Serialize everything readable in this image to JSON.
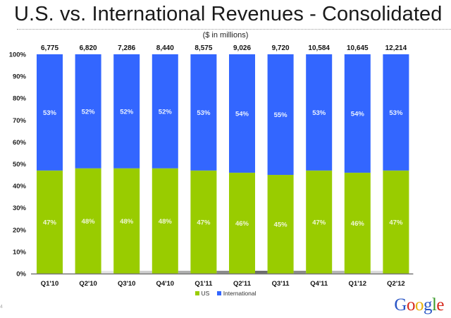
{
  "slide": {
    "title": "U.S. vs. International Revenues - Consolidated",
    "page_number": "4",
    "logo": {
      "letters": [
        {
          "ch": "G",
          "color": "#2a56c6"
        },
        {
          "ch": "o",
          "color": "#d5281b"
        },
        {
          "ch": "o",
          "color": "#e8b00b"
        },
        {
          "ch": "g",
          "color": "#2a56c6"
        },
        {
          "ch": "l",
          "color": "#3a9a2a"
        },
        {
          "ch": "e",
          "color": "#d5281b"
        }
      ]
    }
  },
  "chart_data": {
    "type": "bar",
    "stacked": true,
    "normalized": true,
    "title": "U.S. vs. International Revenues - Consolidated",
    "subtitle": "($ in millions)",
    "xlabel": "",
    "ylabel": "",
    "ylim": [
      0,
      100
    ],
    "yticks": [
      "0%",
      "10%",
      "20%",
      "30%",
      "40%",
      "50%",
      "60%",
      "70%",
      "80%",
      "90%",
      "100%"
    ],
    "grid": false,
    "legend_position": "bottom-center",
    "categories": [
      "Q1'10",
      "Q2'10",
      "Q3'10",
      "Q4'10",
      "Q1'11",
      "Q2'11",
      "Q3'11",
      "Q4'11",
      "Q1'12",
      "Q2'12"
    ],
    "totals": [
      "6,775",
      "6,820",
      "7,286",
      "8,440",
      "8,575",
      "9,026",
      "9,720",
      "10,584",
      "10,645",
      "12,214"
    ],
    "series": [
      {
        "name": "US",
        "color": "#99cc00",
        "values": [
          47,
          48,
          48,
          48,
          47,
          46,
          45,
          47,
          46,
          47
        ]
      },
      {
        "name": "International",
        "color": "#3366ff",
        "values": [
          53,
          52,
          52,
          52,
          53,
          54,
          55,
          53,
          54,
          53
        ]
      }
    ]
  }
}
